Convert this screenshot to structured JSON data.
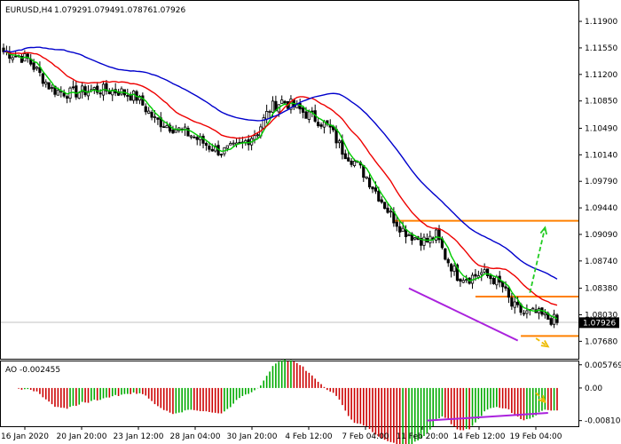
{
  "chart_data": {
    "type": "candlestick",
    "main": {
      "symbol": "EURUSD,H4",
      "ohlc": [
        "1.07929",
        "1.07949",
        "1.07876",
        "1.07926"
      ],
      "last_price": "1.07926",
      "ylim": [
        1.0745,
        1.1217
      ],
      "y_ticks": [
        "1.11900",
        "1.11550",
        "1.11200",
        "1.10850",
        "1.10490",
        "1.10140",
        "1.09790",
        "1.09440",
        "1.09090",
        "1.08740",
        "1.08380",
        "1.08030",
        "1.07680"
      ],
      "x_ticks": [
        "16 Jan 2020",
        "20 Jan 20:00",
        "23 Jan 12:00",
        "28 Jan 04:00",
        "30 Jan 20:00",
        "4 Feb 12:00",
        "7 Feb 04:00",
        "11 Feb 20:00",
        "14 Feb 12:00",
        "19 Feb 04:00"
      ],
      "close_path": [
        [
          0,
          1.115
        ],
        [
          8,
          1.114
        ],
        [
          16,
          1.11
        ],
        [
          22,
          1.1095
        ],
        [
          30,
          1.11
        ],
        [
          38,
          1.1098
        ],
        [
          44,
          1.109
        ],
        [
          50,
          1.106
        ],
        [
          56,
          1.105
        ],
        [
          62,
          1.104
        ],
        [
          68,
          1.1025
        ],
        [
          72,
          1.1018
        ],
        [
          78,
          1.1025
        ],
        [
          84,
          1.1045
        ],
        [
          88,
          1.1075
        ],
        [
          92,
          1.1085
        ],
        [
          96,
          1.1078
        ],
        [
          100,
          1.1068
        ],
        [
          104,
          1.106
        ],
        [
          108,
          1.1048
        ],
        [
          112,
          1.102
        ],
        [
          116,
          1.1005
        ],
        [
          120,
          1.0985
        ],
        [
          124,
          1.096
        ],
        [
          128,
          1.0935
        ],
        [
          132,
          1.0915
        ],
        [
          136,
          1.0905
        ],
        [
          140,
          1.09
        ],
        [
          143,
          1.0908
        ],
        [
          146,
          1.088
        ],
        [
          150,
          1.0855
        ],
        [
          154,
          1.0852
        ],
        [
          158,
          1.0858
        ],
        [
          162,
          1.085
        ],
        [
          165,
          1.084
        ],
        [
          168,
          1.0815
        ],
        [
          172,
          1.0805
        ],
        [
          176,
          1.0805
        ],
        [
          180,
          1.0798
        ],
        [
          183,
          1.0795
        ]
      ],
      "moving_averages": [
        {
          "color": "#00cc00",
          "period": 5,
          "offset": 0
        },
        {
          "color": "#ee0000",
          "period": 12,
          "offset": 0.0012
        },
        {
          "color": "#0000cc",
          "period": 26,
          "offset": 0.0028
        }
      ],
      "support_resistance": [
        {
          "value": 1.0927,
          "color": "#ff8000",
          "from_bar": 129
        },
        {
          "value": 1.0827,
          "color": "#ff8000",
          "from_bar": 156
        },
        {
          "value": 1.0775,
          "color": "#ff8000",
          "from_bar": 171
        }
      ],
      "price_line": {
        "value": 1.0793,
        "color": "#c0c0c0"
      },
      "trendline": {
        "color": "#aa22dd",
        "start": [
          134,
          1.0838
        ],
        "end": [
          170,
          1.0769
        ]
      },
      "arrows": [
        {
          "color": "#22cc22",
          "from": [
            174,
            1.0832
          ],
          "to": [
            179,
            1.0918
          ]
        },
        {
          "color": "#eebb00",
          "from": [
            176,
            1.0772
          ],
          "to": [
            180,
            1.0761
          ]
        }
      ]
    },
    "ao": {
      "title": "AO -0.002455",
      "ylim": [
        -0.0095,
        0.0066
      ],
      "y_ticks": [
        "0.005769",
        "0.00",
        "-0.008103"
      ],
      "up_color": "#00aa00",
      "down_color": "#cc0000",
      "trendline": {
        "color": "#aa22dd",
        "start": [
          140,
          -0.0081
        ],
        "end": [
          180,
          -0.0062
        ]
      },
      "arrow": {
        "color": "#eebb00",
        "from": [
          176,
          -0.0012
        ],
        "to": [
          179,
          -0.0035
        ]
      }
    }
  }
}
